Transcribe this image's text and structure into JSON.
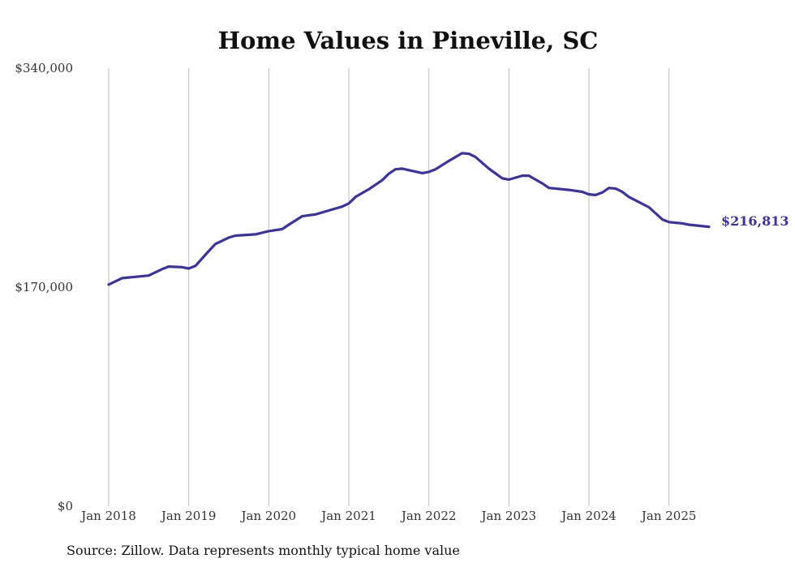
{
  "colors": {
    "line": "#3b3594",
    "grid": "#bdbdbd",
    "text": "#111111"
  },
  "chart_data": {
    "type": "line",
    "title": "Home Values in Pineville, SC",
    "xlabel": "",
    "ylabel": "",
    "ylim": [
      0,
      340000
    ],
    "y_ticks": [
      "$340,000",
      "$170,000",
      "$0"
    ],
    "y_tick_values": [
      340000,
      170000,
      0
    ],
    "x_ticks": [
      "Jan 2018",
      "Jan 2019",
      "Jan 2020",
      "Jan 2021",
      "Jan 2022",
      "Jan 2023",
      "Jan 2024",
      "Jan 2025"
    ],
    "x_tick_values": [
      2018,
      2019,
      2020,
      2021,
      2022,
      2023,
      2024,
      2025
    ],
    "xlim": [
      2018,
      2025.5
    ],
    "grid": "vertical",
    "legend": "none",
    "end_label": "$216,813",
    "series": [
      {
        "points": [
          [
            2018.0,
            172000
          ],
          [
            2018.167,
            177000
          ],
          [
            2018.333,
            178000
          ],
          [
            2018.5,
            179000
          ],
          [
            2018.667,
            184000
          ],
          [
            2018.75,
            186000
          ],
          [
            2018.917,
            185500
          ],
          [
            2019.0,
            184500
          ],
          [
            2019.083,
            186500
          ],
          [
            2019.25,
            198000
          ],
          [
            2019.333,
            203500
          ],
          [
            2019.5,
            208500
          ],
          [
            2019.583,
            210000
          ],
          [
            2019.833,
            211000
          ],
          [
            2020.0,
            213500
          ],
          [
            2020.167,
            215000
          ],
          [
            2020.25,
            218500
          ],
          [
            2020.417,
            225000
          ],
          [
            2020.583,
            226500
          ],
          [
            2020.75,
            229500
          ],
          [
            2020.917,
            232500
          ],
          [
            2021.0,
            235000
          ],
          [
            2021.083,
            240000
          ],
          [
            2021.25,
            246000
          ],
          [
            2021.417,
            253000
          ],
          [
            2021.5,
            258000
          ],
          [
            2021.583,
            261500
          ],
          [
            2021.667,
            262000
          ],
          [
            2021.917,
            258500
          ],
          [
            2022.0,
            259500
          ],
          [
            2022.083,
            261500
          ],
          [
            2022.25,
            268000
          ],
          [
            2022.417,
            274000
          ],
          [
            2022.5,
            273500
          ],
          [
            2022.583,
            271000
          ],
          [
            2022.75,
            262000
          ],
          [
            2022.917,
            254500
          ],
          [
            2023.0,
            253500
          ],
          [
            2023.167,
            256500
          ],
          [
            2023.25,
            256500
          ],
          [
            2023.417,
            250500
          ],
          [
            2023.5,
            247000
          ],
          [
            2023.75,
            245500
          ],
          [
            2023.917,
            244000
          ],
          [
            2024.0,
            242000
          ],
          [
            2024.083,
            241500
          ],
          [
            2024.167,
            243500
          ],
          [
            2024.25,
            247000
          ],
          [
            2024.333,
            246500
          ],
          [
            2024.417,
            244000
          ],
          [
            2024.5,
            240000
          ],
          [
            2024.75,
            232000
          ],
          [
            2024.917,
            222500
          ],
          [
            2025.0,
            220500
          ],
          [
            2025.167,
            219500
          ],
          [
            2025.25,
            218500
          ],
          [
            2025.5,
            216813
          ]
        ]
      }
    ]
  },
  "source_note": "Source: Zillow. Data represents monthly typical home value"
}
